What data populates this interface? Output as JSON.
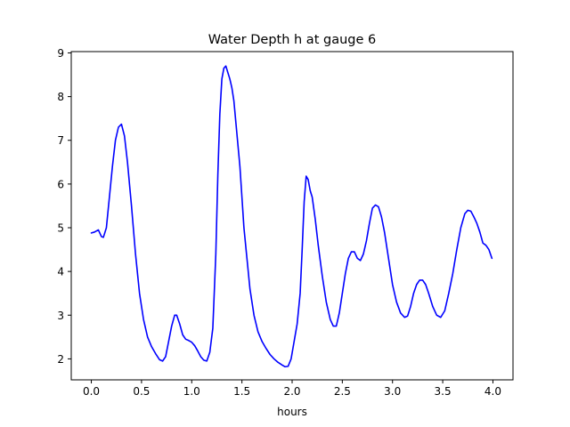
{
  "chart_data": {
    "type": "line",
    "title": "Water Depth h at gauge 6",
    "xlabel": "hours",
    "ylabel": "",
    "xlim": [
      -0.2,
      4.2
    ],
    "ylim": [
      1.52,
      9.03
    ],
    "xticks": [
      0.0,
      0.5,
      1.0,
      1.5,
      2.0,
      2.5,
      3.0,
      3.5,
      4.0
    ],
    "xtick_labels": [
      "0.0",
      "0.5",
      "1.0",
      "1.5",
      "2.0",
      "2.5",
      "3.0",
      "3.5",
      "4.0"
    ],
    "yticks": [
      2,
      3,
      4,
      5,
      6,
      7,
      8,
      9
    ],
    "ytick_labels": [
      "2",
      "3",
      "4",
      "5",
      "6",
      "7",
      "8",
      "9"
    ],
    "grid": false,
    "series": [
      {
        "color": "#0000ff",
        "x": [
          0.0,
          0.03,
          0.07,
          0.1,
          0.12,
          0.15,
          0.18,
          0.21,
          0.24,
          0.27,
          0.3,
          0.33,
          0.36,
          0.4,
          0.44,
          0.48,
          0.52,
          0.56,
          0.6,
          0.64,
          0.68,
          0.71,
          0.74,
          0.77,
          0.8,
          0.83,
          0.85,
          0.88,
          0.91,
          0.94,
          0.97,
          1.0,
          1.03,
          1.06,
          1.09,
          1.12,
          1.15,
          1.18,
          1.21,
          1.24,
          1.26,
          1.28,
          1.3,
          1.32,
          1.34,
          1.36,
          1.38,
          1.4,
          1.42,
          1.44,
          1.46,
          1.48,
          1.5,
          1.52,
          1.55,
          1.58,
          1.62,
          1.66,
          1.7,
          1.74,
          1.78,
          1.82,
          1.86,
          1.9,
          1.93,
          1.96,
          1.99,
          2.02,
          2.05,
          2.08,
          2.1,
          2.12,
          2.14,
          2.16,
          2.18,
          2.2,
          2.23,
          2.26,
          2.3,
          2.34,
          2.38,
          2.41,
          2.44,
          2.47,
          2.5,
          2.53,
          2.56,
          2.59,
          2.62,
          2.65,
          2.68,
          2.71,
          2.74,
          2.77,
          2.8,
          2.83,
          2.86,
          2.89,
          2.92,
          2.96,
          3.0,
          3.04,
          3.08,
          3.12,
          3.15,
          3.18,
          3.21,
          3.24,
          3.27,
          3.3,
          3.33,
          3.36,
          3.4,
          3.44,
          3.48,
          3.52,
          3.56,
          3.6,
          3.64,
          3.68,
          3.72,
          3.75,
          3.78,
          3.81,
          3.84,
          3.87,
          3.9,
          3.93,
          3.96,
          3.99
        ],
        "y": [
          4.88,
          4.9,
          4.95,
          4.8,
          4.78,
          5.0,
          5.7,
          6.4,
          7.0,
          7.3,
          7.37,
          7.1,
          6.5,
          5.5,
          4.4,
          3.5,
          2.9,
          2.5,
          2.28,
          2.12,
          1.98,
          1.95,
          2.05,
          2.4,
          2.75,
          3.0,
          3.0,
          2.8,
          2.55,
          2.45,
          2.42,
          2.38,
          2.3,
          2.18,
          2.05,
          1.97,
          1.95,
          2.15,
          2.7,
          4.4,
          6.2,
          7.6,
          8.4,
          8.65,
          8.7,
          8.55,
          8.4,
          8.2,
          7.9,
          7.4,
          6.9,
          6.4,
          5.7,
          5.0,
          4.3,
          3.6,
          3.0,
          2.62,
          2.4,
          2.24,
          2.1,
          2.0,
          1.92,
          1.86,
          1.82,
          1.83,
          2.0,
          2.4,
          2.8,
          3.5,
          4.5,
          5.6,
          6.18,
          6.1,
          5.85,
          5.7,
          5.2,
          4.6,
          3.9,
          3.3,
          2.9,
          2.75,
          2.75,
          3.05,
          3.5,
          3.95,
          4.3,
          4.45,
          4.45,
          4.3,
          4.25,
          4.4,
          4.7,
          5.1,
          5.45,
          5.52,
          5.48,
          5.25,
          4.9,
          4.3,
          3.7,
          3.3,
          3.05,
          2.95,
          2.98,
          3.2,
          3.5,
          3.7,
          3.8,
          3.8,
          3.7,
          3.5,
          3.2,
          3.0,
          2.95,
          3.1,
          3.5,
          3.95,
          4.5,
          5.0,
          5.32,
          5.4,
          5.38,
          5.25,
          5.1,
          4.9,
          4.65,
          4.6,
          4.5,
          4.3
        ]
      }
    ]
  }
}
